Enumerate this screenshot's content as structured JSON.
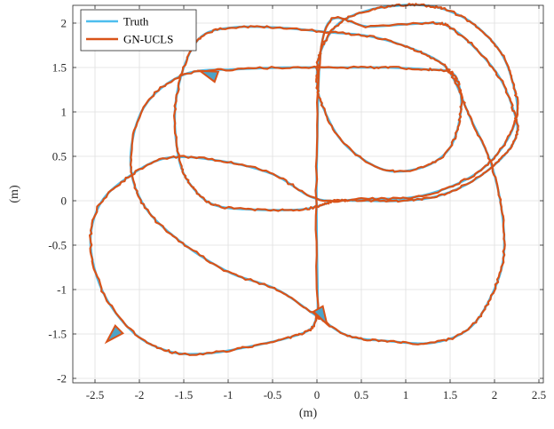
{
  "chart_data": {
    "type": "line",
    "title": "",
    "xlabel": "(m)",
    "ylabel": "(m)",
    "xlim": [
      -2.75,
      2.55
    ],
    "ylim": [
      -2.05,
      2.2
    ],
    "xticks": [
      -2.5,
      -2,
      -1.5,
      -1,
      -0.5,
      0,
      0.5,
      1,
      1.5,
      2,
      2.5
    ],
    "xtick_labels": [
      "-2.5",
      "-2",
      "-1.5",
      "-1",
      "-0.5",
      "0",
      "0.5",
      "1",
      "1.5",
      "2",
      "2.5"
    ],
    "yticks": [
      -2,
      -1.5,
      -1,
      -0.5,
      0,
      0.5,
      1,
      1.5,
      2
    ],
    "ytick_labels": [
      "-2",
      "-1.5",
      "-1",
      "-0.5",
      "0",
      "0.5",
      "1",
      "1.5",
      "2"
    ],
    "grid": true,
    "legend_position": "top-left",
    "colors": {
      "truth": "#4DBEEE",
      "estimate": "#D95319",
      "marker_fill": "#4DA3C7"
    },
    "series": [
      {
        "name": "Truth",
        "x": [
          0.0,
          -0.08,
          -0.35,
          -0.8,
          -1.25,
          -1.65,
          -2.05,
          -2.4,
          -2.55,
          -2.45,
          -2.15,
          -1.7,
          -1.1,
          -0.5,
          0.0,
          0.55,
          1.15,
          1.7,
          2.05,
          2.25,
          2.2,
          2.05,
          1.75,
          1.45,
          1.2,
          0.95,
          0.6,
          0.25,
          0.05,
          0.0,
          0.05,
          0.3,
          0.75,
          1.2,
          1.5,
          1.62,
          1.6,
          1.5,
          1.2,
          0.8,
          0.3,
          -0.3,
          -0.9,
          -1.5,
          -1.95,
          -2.1,
          -1.95,
          -1.55,
          -1.0,
          -0.45,
          0.0,
          0.35,
          0.8,
          1.3,
          1.7,
          1.95,
          2.1,
          2.08,
          1.95,
          1.72,
          1.55,
          1.4,
          1.05,
          0.6,
          0.1,
          -0.45,
          -0.95,
          -1.3,
          -1.5,
          -1.6,
          -1.55,
          -1.4,
          -1.15,
          -0.7,
          -0.2,
          0.05,
          0.2,
          0.5,
          0.95,
          1.35,
          1.75,
          2.1,
          2.25,
          2.22,
          2.05,
          1.75,
          1.5,
          1.3,
          0.6,
          0.1,
          0.0,
          0.01
        ],
        "y": [
          -1.3,
          -1.45,
          -1.55,
          -1.65,
          -1.72,
          -1.7,
          -1.5,
          -1.05,
          -0.5,
          -0.05,
          0.25,
          0.48,
          0.45,
          0.3,
          0.02,
          0.02,
          0.05,
          0.25,
          0.55,
          0.95,
          1.35,
          1.7,
          2.0,
          2.15,
          2.2,
          2.2,
          2.15,
          2.0,
          1.7,
          1.4,
          1.1,
          0.65,
          0.35,
          0.38,
          0.6,
          1.0,
          1.3,
          1.45,
          1.48,
          1.5,
          1.5,
          1.5,
          1.48,
          1.42,
          1.05,
          0.45,
          -0.05,
          -0.45,
          -0.8,
          -1.0,
          -1.3,
          -1.52,
          -1.58,
          -1.6,
          -1.45,
          -1.1,
          -0.65,
          -0.1,
          0.45,
          0.95,
          1.35,
          1.55,
          1.72,
          1.85,
          1.9,
          1.95,
          1.95,
          1.85,
          1.5,
          1.0,
          0.45,
          0.15,
          -0.05,
          -0.1,
          -0.1,
          -0.05,
          0.0,
          0.0,
          0.0,
          0.05,
          0.22,
          0.5,
          0.75,
          1.0,
          1.4,
          1.75,
          1.95,
          2.0,
          1.96,
          1.95,
          0.5,
          -1.25
        ]
      },
      {
        "name": "GN-UCLS",
        "x": [
          0.0,
          -0.08,
          -0.35,
          -0.8,
          -1.25,
          -1.65,
          -2.05,
          -2.4,
          -2.55,
          -2.45,
          -2.15,
          -1.7,
          -1.1,
          -0.5,
          0.0,
          0.55,
          1.15,
          1.7,
          2.05,
          2.25,
          2.2,
          2.05,
          1.75,
          1.45,
          1.2,
          0.95,
          0.6,
          0.25,
          0.05,
          0.0,
          0.05,
          0.3,
          0.75,
          1.2,
          1.5,
          1.62,
          1.6,
          1.5,
          1.2,
          0.8,
          0.3,
          -0.3,
          -0.9,
          -1.5,
          -1.95,
          -2.1,
          -1.95,
          -1.55,
          -1.0,
          -0.45,
          0.0,
          0.35,
          0.8,
          1.3,
          1.7,
          1.95,
          2.1,
          2.08,
          1.95,
          1.72,
          1.55,
          1.4,
          1.05,
          0.6,
          0.1,
          -0.45,
          -0.95,
          -1.3,
          -1.5,
          -1.6,
          -1.55,
          -1.4,
          -1.15,
          -0.7,
          -0.2,
          0.05,
          0.2,
          0.5,
          0.95,
          1.35,
          1.75,
          2.1,
          2.25,
          2.22,
          2.05,
          1.75,
          1.5,
          1.3,
          0.6,
          0.1,
          0.0,
          0.01
        ],
        "y": [
          -1.3,
          -1.45,
          -1.55,
          -1.65,
          -1.72,
          -1.7,
          -1.5,
          -1.05,
          -0.5,
          -0.05,
          0.25,
          0.48,
          0.45,
          0.3,
          0.02,
          0.02,
          0.05,
          0.25,
          0.55,
          0.95,
          1.35,
          1.7,
          2.0,
          2.15,
          2.2,
          2.2,
          2.15,
          2.0,
          1.7,
          1.4,
          1.1,
          0.65,
          0.35,
          0.38,
          0.6,
          1.0,
          1.3,
          1.45,
          1.48,
          1.5,
          1.5,
          1.5,
          1.48,
          1.42,
          1.05,
          0.45,
          -0.05,
          -0.45,
          -0.8,
          -1.0,
          -1.3,
          -1.52,
          -1.58,
          -1.6,
          -1.45,
          -1.1,
          -0.65,
          -0.1,
          0.45,
          0.95,
          1.35,
          1.55,
          1.72,
          1.85,
          1.9,
          1.95,
          1.95,
          1.85,
          1.5,
          1.0,
          0.45,
          0.15,
          -0.05,
          -0.1,
          -0.1,
          -0.05,
          0.0,
          0.0,
          0.0,
          0.05,
          0.22,
          0.5,
          0.75,
          1.0,
          1.4,
          1.75,
          1.95,
          2.0,
          1.96,
          1.95,
          0.5,
          -1.25
        ]
      }
    ],
    "markers": [
      {
        "shape": "triangle",
        "x": -1.2,
        "y": 1.42,
        "direction_deg": 160
      },
      {
        "shape": "triangle",
        "x": -2.28,
        "y": -1.5,
        "direction_deg": 225
      },
      {
        "shape": "triangle",
        "x": 0.05,
        "y": -1.28,
        "direction_deg": 300
      }
    ]
  }
}
